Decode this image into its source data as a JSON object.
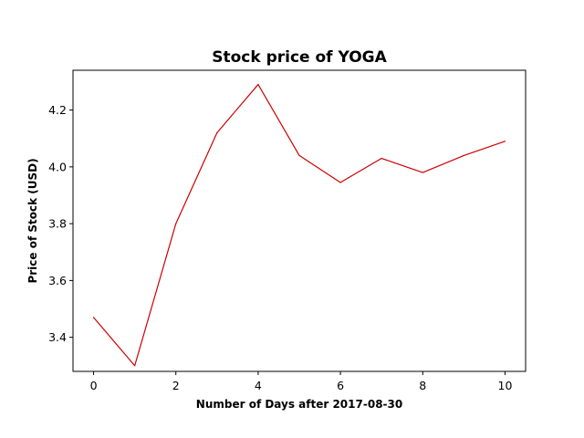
{
  "chart_data": {
    "type": "line",
    "title": "Stock price of YOGA",
    "xlabel": "Number of Days after 2017-08-30",
    "ylabel": "Price of Stock (USD)",
    "xlim": [
      -0.5,
      10.5
    ],
    "ylim": [
      3.28,
      4.34
    ],
    "xticks": [
      0,
      2,
      4,
      6,
      8,
      10
    ],
    "xtick_labels": [
      "0",
      "2",
      "4",
      "6",
      "8",
      "10"
    ],
    "yticks": [
      3.4,
      3.6,
      3.8,
      4.0,
      4.2
    ],
    "ytick_labels": [
      "3.4",
      "3.6",
      "3.8",
      "4.0",
      "4.2"
    ],
    "grid": false,
    "series": [
      {
        "color": "#cc0000",
        "x": [
          0,
          1,
          2,
          3,
          4,
          5,
          6,
          7,
          8,
          9,
          10
        ],
        "y": [
          3.47,
          3.3,
          3.8,
          4.12,
          4.29,
          4.04,
          3.945,
          4.03,
          3.98,
          4.04,
          4.09
        ]
      }
    ]
  }
}
